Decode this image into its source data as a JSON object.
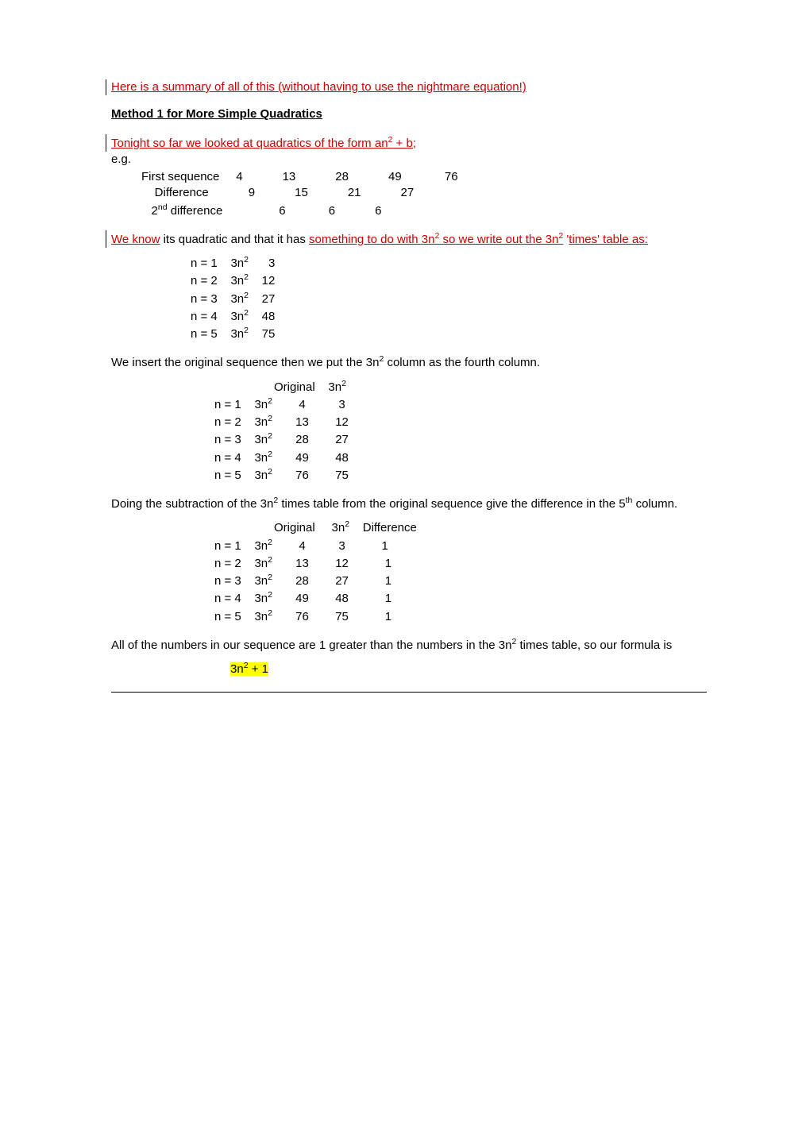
{
  "intro_link": "Here is a summary of all of this (without having to use the nightmare equation!)",
  "heading1": "Method 1 for More Simple Quadratics",
  "tonight_text_pre": "Tonight so far we looked at quadratics of the form an",
  "tonight_text_post": " + b;",
  "eg_label": "e.g.",
  "seq": {
    "row1_label": "First sequence",
    "row1_vals": [
      "4",
      "13",
      "28",
      "49",
      "76"
    ],
    "row2_label": "Difference",
    "row2_vals": [
      "9",
      "15",
      "21",
      "27"
    ],
    "row3_label_pre": "2",
    "row3_label_post": " difference",
    "row3_vals": [
      "6",
      "6",
      "6"
    ]
  },
  "we_know_pre": "We know",
  "we_know_mid": " its quadratic and that it has ",
  "something_link_pre": "something to do with 3n",
  "something_link_post": " so we write out the 3n",
  "times_apos": " '",
  "times_word": "times",
  "we_know_end": "' table as:",
  "tt1": {
    "rows": [
      {
        "n": "n = 1",
        "f": "3n",
        "v": "3"
      },
      {
        "n": "n = 2",
        "f": "3n",
        "v": "12"
      },
      {
        "n": "n = 3",
        "f": "3n",
        "v": "27"
      },
      {
        "n": "n = 4",
        "f": "3n",
        "v": "48"
      },
      {
        "n": "n = 5",
        "f": "3n",
        "v": "75"
      }
    ]
  },
  "insert_text_pre": "We insert the original sequence then we put the 3n",
  "insert_text_post": " column as the fourth column.",
  "tt2": {
    "h1": "Original",
    "h2": "3n",
    "rows": [
      {
        "n": "n = 1",
        "f": "3n",
        "o": "4",
        "t": "3"
      },
      {
        "n": "n = 2",
        "f": "3n",
        "o": "13",
        "t": "12"
      },
      {
        "n": "n = 3",
        "f": "3n",
        "o": "28",
        "t": "27"
      },
      {
        "n": "n = 4",
        "f": "3n",
        "o": "49",
        "t": "48"
      },
      {
        "n": "n = 5",
        "f": "3n",
        "o": "76",
        "t": "75"
      }
    ]
  },
  "subtr_text_pre": "Doing the subtraction of the 3n",
  "subtr_text_mid": " times table from the original sequence give the difference in the 5",
  "subtr_text_post": " column.",
  "tt3": {
    "h1": "Original",
    "h2": "3n",
    "h3": "Difference",
    "rows": [
      {
        "n": "n = 1",
        "f": "3n",
        "o": "4",
        "t": "3",
        "d": "1"
      },
      {
        "n": "n = 2",
        "f": "3n",
        "o": "13",
        "t": "12",
        "d": "1"
      },
      {
        "n": "n = 3",
        "f": "3n",
        "o": "28",
        "t": "27",
        "d": "1"
      },
      {
        "n": "n = 4",
        "f": "3n",
        "o": "49",
        "t": "48",
        "d": "1"
      },
      {
        "n": "n = 5",
        "f": "3n",
        "o": "76",
        "t": "75",
        "d": "1"
      }
    ]
  },
  "all_text_pre": "All of the numbers in our sequence are 1 greater than the numbers in the 3n",
  "all_text_post": " times table, so our formula is",
  "formula_pre": "3n",
  "formula_post": " + 1"
}
